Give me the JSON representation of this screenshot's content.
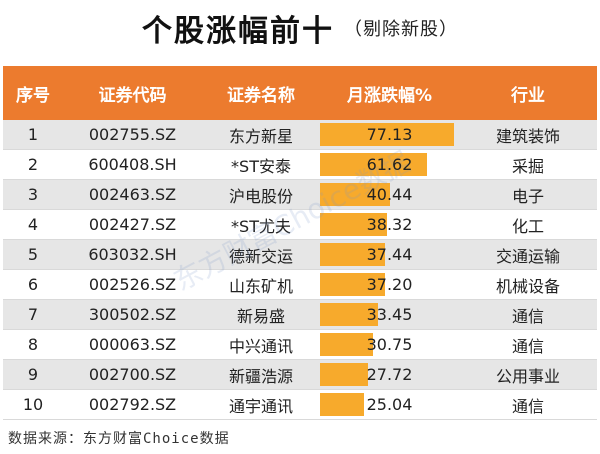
{
  "title": "个股涨幅前十",
  "subtitle": "（剔除新股）",
  "headers": [
    "序号",
    "证券代码",
    "证券名称",
    "月涨跌幅%",
    "行业"
  ],
  "chart_data": {
    "type": "table",
    "max_value": 80,
    "rows": [
      {
        "rank": "1",
        "code": "002755.SZ",
        "name": "东方新星",
        "change": 77.13,
        "industry": "建筑装饰"
      },
      {
        "rank": "2",
        "code": "600408.SH",
        "name": "*ST安泰",
        "change": 61.62,
        "industry": "采掘"
      },
      {
        "rank": "3",
        "code": "002463.SZ",
        "name": "沪电股份",
        "change": 40.44,
        "industry": "电子"
      },
      {
        "rank": "4",
        "code": "002427.SZ",
        "name": "*ST尤夫",
        "change": 38.32,
        "industry": "化工"
      },
      {
        "rank": "5",
        "code": "603032.SH",
        "name": "德新交运",
        "change": 37.44,
        "industry": "交通运输"
      },
      {
        "rank": "6",
        "code": "002526.SZ",
        "name": "山东矿机",
        "change": 37.2,
        "industry": "机械设备"
      },
      {
        "rank": "7",
        "code": "300502.SZ",
        "name": "新易盛",
        "change": 33.45,
        "industry": "通信"
      },
      {
        "rank": "8",
        "code": "000063.SZ",
        "name": "中兴通讯",
        "change": 30.75,
        "industry": "通信"
      },
      {
        "rank": "9",
        "code": "002700.SZ",
        "name": "新疆浩源",
        "change": 27.72,
        "industry": "公用事业"
      },
      {
        "rank": "10",
        "code": "002792.SZ",
        "name": "通宇通讯",
        "change": 25.04,
        "industry": "通信"
      }
    ]
  },
  "source": "数据来源：东方财富Choice数据",
  "watermark": "东方财富Choice数据",
  "colors": {
    "header": "#ec7b2e",
    "bar": "#f7aa2c",
    "odd_row": "#e6e6e6"
  }
}
